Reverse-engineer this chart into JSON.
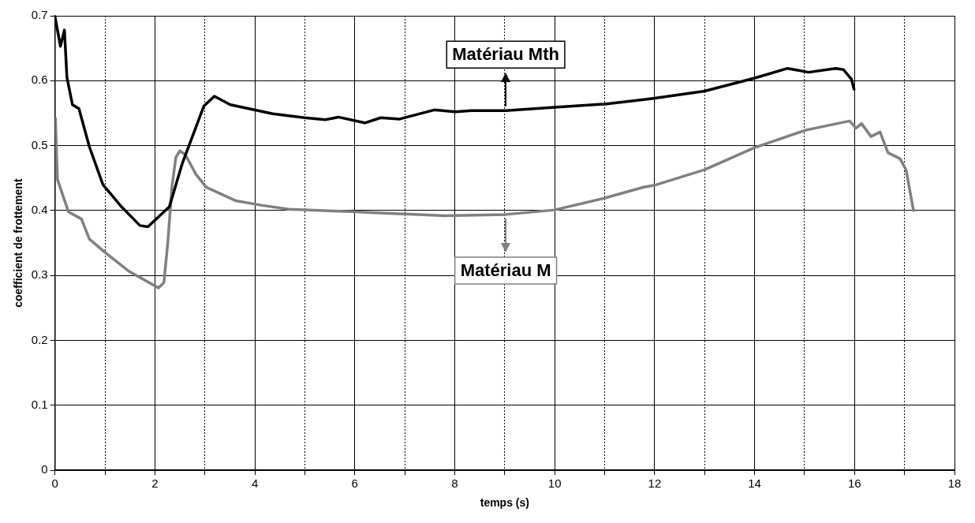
{
  "chart_data": {
    "type": "line",
    "xlabel": "temps (s)",
    "ylabel": "coefficient de frottement",
    "xlim": [
      0,
      18
    ],
    "ylim": [
      0,
      0.7
    ],
    "xticks": [
      0,
      {
        "value": 1,
        "label": null
      },
      2,
      {
        "value": 3,
        "label": null
      },
      4,
      {
        "value": 5,
        "label": null
      },
      6,
      {
        "value": 7,
        "label": null
      },
      8,
      {
        "value": 9,
        "label": null
      },
      10,
      {
        "value": 11,
        "label": null
      },
      12,
      {
        "value": 13,
        "label": null
      },
      14,
      {
        "value": 15,
        "label": null
      },
      16,
      {
        "value": 17,
        "label": null
      },
      18
    ],
    "yticks": [
      0,
      0.1,
      0.2,
      0.3,
      0.4,
      0.5,
      0.6,
      0.7
    ],
    "grid": true,
    "legend": "top",
    "marker": "none",
    "line_style": "solid",
    "series": [
      {
        "name": "Matériau Mth",
        "color": "#000000",
        "x": [
          0,
          0.11,
          0.19,
          0.24,
          0.35,
          0.48,
          0.69,
          0.96,
          1.33,
          1.7,
          1.86,
          2.29,
          2.55,
          2.98,
          3.19,
          3.51,
          4.36,
          5,
          5.41,
          5.67,
          6.2,
          6.52,
          6.9,
          7.59,
          8.01,
          8.33,
          9.02,
          10,
          11,
          11.78,
          12,
          13,
          14,
          14.66,
          15.08,
          15.62,
          15.78,
          15.94,
          15.99
        ],
        "values": [
          0.699,
          0.653,
          0.678,
          0.605,
          0.563,
          0.557,
          0.498,
          0.44,
          0.406,
          0.377,
          0.375,
          0.406,
          0.473,
          0.561,
          0.576,
          0.563,
          0.549,
          0.543,
          0.54,
          0.544,
          0.535,
          0.543,
          0.541,
          0.555,
          0.552,
          0.554,
          0.554,
          0.559,
          0.564,
          0.571,
          0.573,
          0.584,
          0.604,
          0.619,
          0.613,
          0.619,
          0.617,
          0.602,
          0.587
        ]
      },
      {
        "name": "Matériau M",
        "color": "#808080",
        "x": [
          0.01,
          0.05,
          0.27,
          0.53,
          0.69,
          1.01,
          1.49,
          2.07,
          2.18,
          2.26,
          2.34,
          2.42,
          2.5,
          2.61,
          2.82,
          3.03,
          3.62,
          4.15,
          4.68,
          6,
          7.8,
          9.02,
          10,
          10.99,
          11.78,
          12,
          13,
          14,
          15.03,
          15.9,
          16.03,
          16.14,
          16.33,
          16.51,
          16.67,
          16.91,
          17.03,
          17.18
        ],
        "values": [
          0.542,
          0.448,
          0.398,
          0.387,
          0.356,
          0.335,
          0.306,
          0.281,
          0.289,
          0.352,
          0.436,
          0.482,
          0.492,
          0.486,
          0.456,
          0.436,
          0.415,
          0.408,
          0.402,
          0.398,
          0.392,
          0.394,
          0.401,
          0.419,
          0.436,
          0.439,
          0.463,
          0.497,
          0.524,
          0.538,
          0.527,
          0.534,
          0.514,
          0.521,
          0.489,
          0.48,
          0.463,
          0.4
        ]
      }
    ]
  }
}
